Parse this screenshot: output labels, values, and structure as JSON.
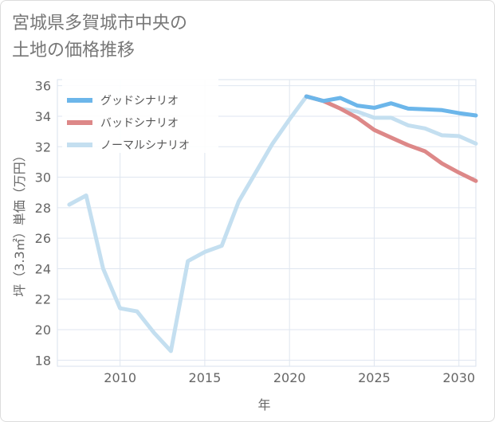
{
  "title_lines": [
    "宮城県多賀城市中央の",
    "土地の価格推移"
  ],
  "chart_data": {
    "type": "line",
    "xlabel": "年",
    "ylabel": "坪（3.3㎡）単価（万円）",
    "xlim": [
      2006.3,
      2031
    ],
    "ylim": [
      17.6,
      36.4
    ],
    "xticks": [
      2010,
      2015,
      2020,
      2025,
      2030
    ],
    "yticks": [
      18,
      20,
      22,
      24,
      26,
      28,
      30,
      32,
      34,
      36
    ],
    "grid": true,
    "legend_position": "top-left",
    "series": [
      {
        "name": "グッドシナリオ",
        "color": "#6cb6ea",
        "points": [
          [
            2021,
            35.3
          ],
          [
            2022,
            35.0
          ],
          [
            2023,
            35.2
          ],
          [
            2024,
            34.7
          ],
          [
            2025,
            34.55
          ],
          [
            2026,
            34.85
          ],
          [
            2027,
            34.5
          ],
          [
            2028,
            34.45
          ],
          [
            2029,
            34.4
          ],
          [
            2030,
            34.2
          ],
          [
            2031,
            34.05
          ]
        ]
      },
      {
        "name": "バッドシナリオ",
        "color": "#dd8888",
        "points": [
          [
            2021,
            35.3
          ],
          [
            2022,
            35.0
          ],
          [
            2023,
            34.5
          ],
          [
            2024,
            33.9
          ],
          [
            2025,
            33.1
          ],
          [
            2026,
            32.6
          ],
          [
            2027,
            32.1
          ],
          [
            2028,
            31.7
          ],
          [
            2029,
            30.9
          ],
          [
            2030,
            30.3
          ],
          [
            2031,
            29.75
          ]
        ]
      },
      {
        "name": "ノーマルシナリオ",
        "color": "#c4dff0",
        "points": [
          [
            2007,
            28.2
          ],
          [
            2008,
            28.8
          ],
          [
            2009,
            24.0
          ],
          [
            2010,
            21.4
          ],
          [
            2011,
            21.2
          ],
          [
            2012,
            19.8
          ],
          [
            2013,
            18.6
          ],
          [
            2014,
            24.5
          ],
          [
            2015,
            25.1
          ],
          [
            2016,
            25.5
          ],
          [
            2017,
            28.4
          ],
          [
            2018,
            30.3
          ],
          [
            2019,
            32.2
          ],
          [
            2020,
            33.8
          ],
          [
            2021,
            35.3
          ],
          [
            2022,
            35.0
          ],
          [
            2023,
            34.5
          ],
          [
            2024,
            34.3
          ],
          [
            2025,
            33.9
          ],
          [
            2026,
            33.9
          ],
          [
            2027,
            33.4
          ],
          [
            2028,
            33.2
          ],
          [
            2029,
            32.75
          ],
          [
            2030,
            32.7
          ],
          [
            2031,
            32.2
          ]
        ]
      }
    ]
  }
}
